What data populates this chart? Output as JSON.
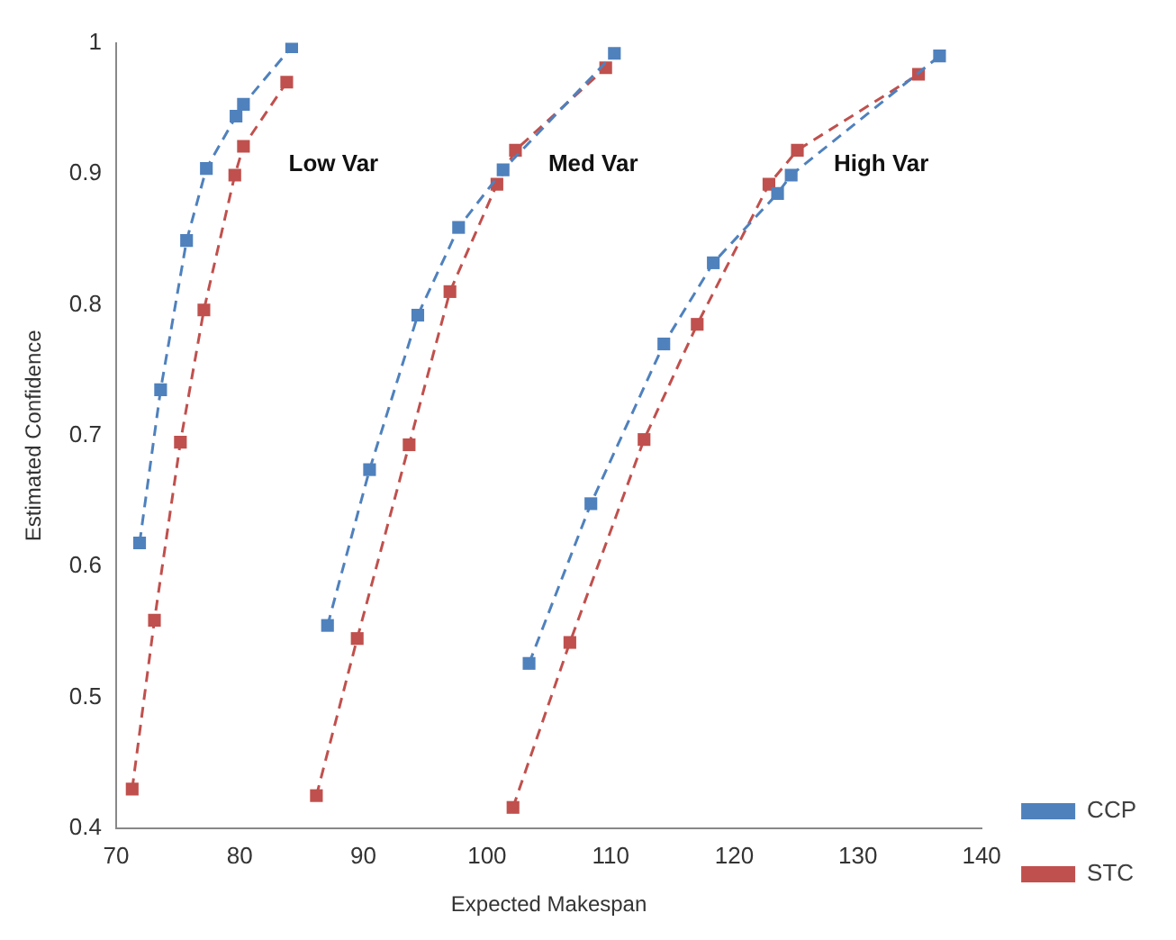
{
  "chart_data": {
    "type": "line",
    "xlabel": "Expected Makespan",
    "ylabel": "Estimated Confidence",
    "xlim": [
      70,
      140
    ],
    "xticks": [
      70,
      80,
      90,
      100,
      110,
      120,
      130,
      140
    ],
    "ylim": [
      0.4,
      1
    ],
    "yticks": [
      0.4,
      0.5,
      0.6,
      0.7,
      0.8,
      0.9,
      1
    ],
    "grid": false,
    "legend": "bottom right",
    "marker": "square",
    "line_style": "dashed",
    "series": [
      {
        "name": "CCP",
        "color": "#4f81bd",
        "x": [
          71.9,
          73.6,
          75.7,
          77.3,
          79.7,
          80.3,
          84.2,
          null,
          87.1,
          90.5,
          94.4,
          97.7,
          101.3,
          110.3,
          null,
          103.4,
          108.4,
          114.3,
          118.3,
          123.5,
          124.6,
          136.6
        ],
        "values": [
          0.618,
          0.735,
          0.849,
          0.904,
          0.944,
          0.953,
          0.997,
          null,
          0.555,
          0.674,
          0.792,
          0.859,
          0.903,
          0.992,
          null,
          0.526,
          0.648,
          0.77,
          0.832,
          0.885,
          0.899,
          0.99
        ]
      },
      {
        "name": "STC",
        "color": "#c0504d",
        "x": [
          71.3,
          73.1,
          75.2,
          77.1,
          79.6,
          80.3,
          83.8,
          null,
          86.2,
          89.5,
          93.7,
          97.0,
          100.8,
          102.3,
          109.6,
          null,
          102.1,
          106.7,
          112.7,
          117.0,
          122.8,
          125.1,
          134.9
        ],
        "values": [
          0.43,
          0.559,
          0.695,
          0.796,
          0.899,
          0.921,
          0.97,
          null,
          0.425,
          0.545,
          0.693,
          0.81,
          0.892,
          0.918,
          0.981,
          null,
          0.416,
          0.542,
          0.697,
          0.785,
          0.892,
          0.918,
          0.976
        ]
      }
    ],
    "annotations": [
      "Low Var",
      "Med Var",
      "High Var"
    ]
  }
}
